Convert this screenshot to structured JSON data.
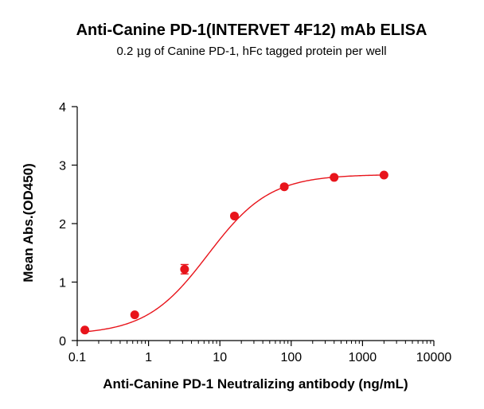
{
  "chart_data": {
    "type": "scatter",
    "title": "Anti-Canine PD-1(INTERVET 4F12) mAb ELISA",
    "subtitle_parts": [
      "0.2 ",
      "μ",
      "g of Canine PD-1, hFc tagged protein per well"
    ],
    "xlabel": "Anti-Canine PD-1 Neutralizing antibody (ng/mL)",
    "ylabel": "Mean Abs.(OD450)",
    "x_scale": "log",
    "xlim": [
      0.1,
      10000
    ],
    "ylim": [
      0,
      4
    ],
    "x_ticks": [
      0.1,
      1,
      10,
      100,
      1000,
      10000
    ],
    "x_tick_labels": [
      "0.1",
      "1",
      "10",
      "100",
      "1000",
      "10000"
    ],
    "y_ticks": [
      0,
      1,
      2,
      3,
      4
    ],
    "y_tick_labels": [
      "0",
      "1",
      "2",
      "3",
      "4"
    ],
    "grid": false,
    "color": "#e8141b",
    "series": [
      {
        "x": [
          0.128,
          0.64,
          3.2,
          16,
          80,
          400,
          2000
        ],
        "y": [
          0.18,
          0.44,
          1.22,
          2.13,
          2.63,
          2.79,
          2.83
        ],
        "error": [
          0.02,
          0.02,
          0.08,
          0.03,
          0.03,
          0.02,
          0.02
        ]
      }
    ],
    "fit": {
      "model": "4PL",
      "bottom": 0.1,
      "top": 2.84,
      "ec50": 6.8,
      "hill": 1.0
    }
  }
}
